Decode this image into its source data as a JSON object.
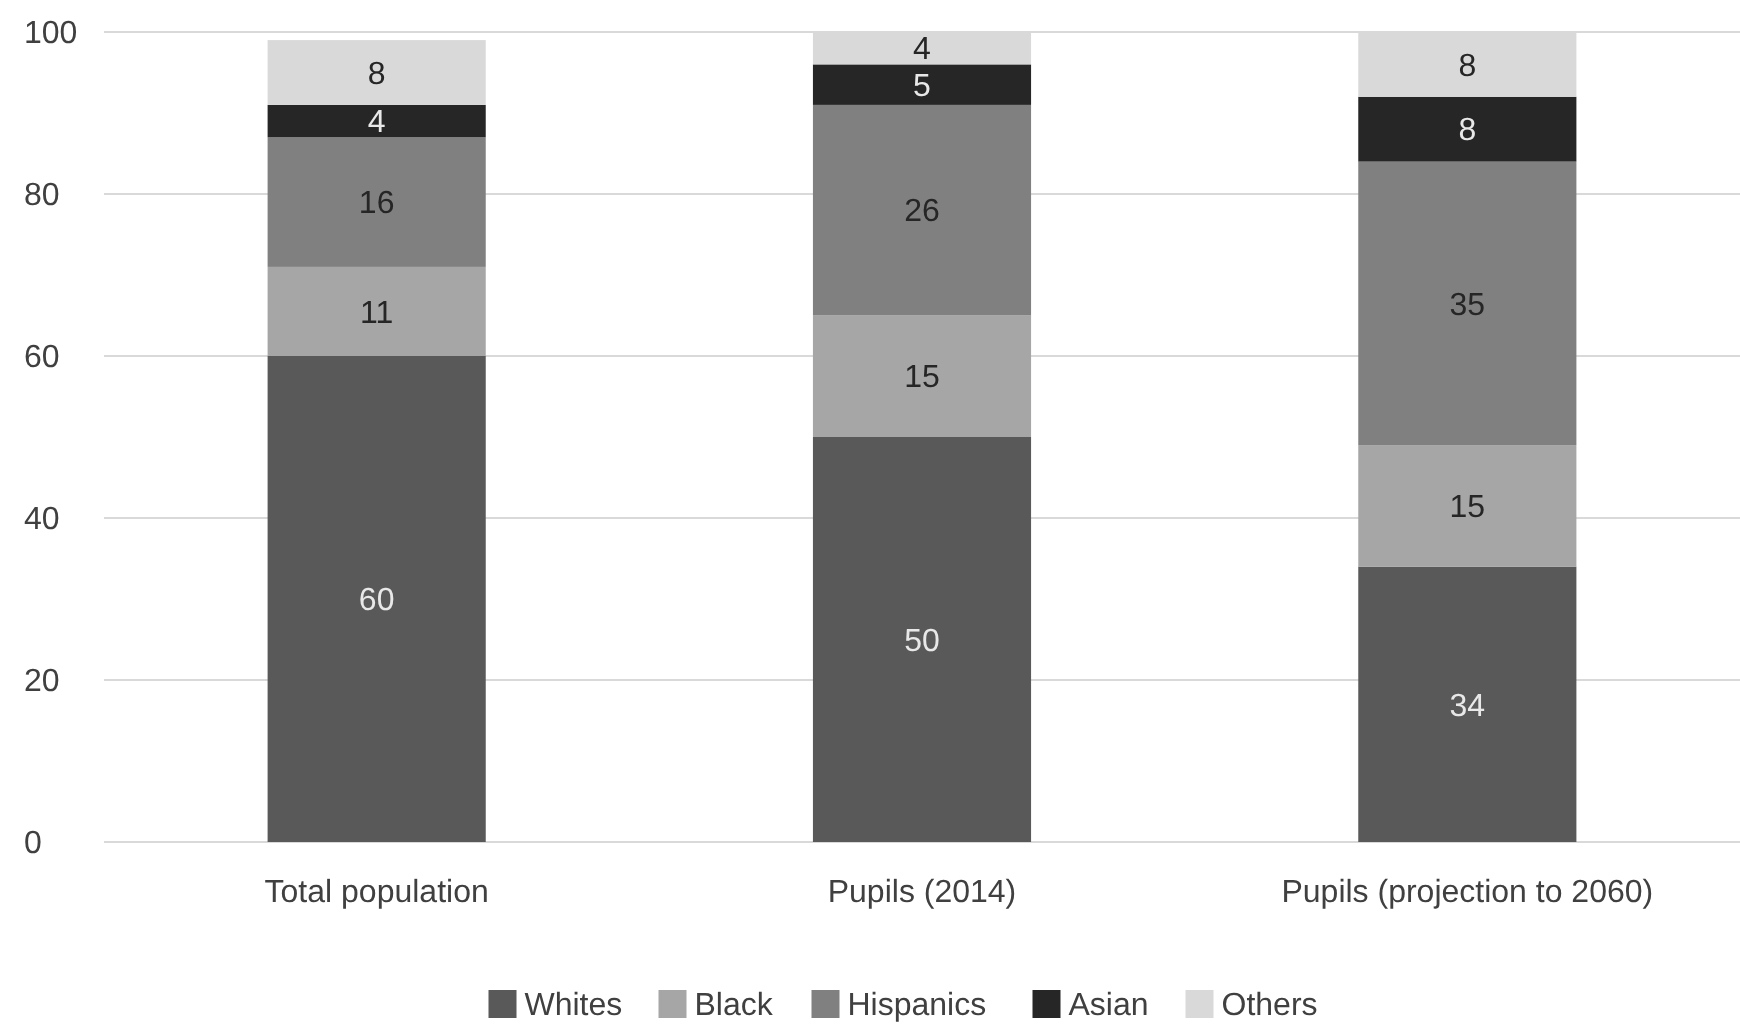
{
  "chart_data": {
    "type": "bar",
    "stacked": true,
    "categories": [
      "Total population",
      "Pupils (2014)",
      "Pupils (projection to 2060)"
    ],
    "series": [
      {
        "name": "Whites",
        "color": "#595959",
        "values": [
          60,
          50,
          34
        ]
      },
      {
        "name": "Black",
        "color": "#a6a6a6",
        "values": [
          11,
          15,
          15
        ]
      },
      {
        "name": "Hispanics",
        "color": "#808080",
        "values": [
          16,
          26,
          35
        ]
      },
      {
        "name": "Asian",
        "color": "#262626",
        "values": [
          4,
          5,
          8
        ]
      },
      {
        "name": "Others",
        "color": "#d9d9d9",
        "values": [
          8,
          4,
          8
        ]
      }
    ],
    "ylim": [
      0,
      100
    ],
    "yticks": [
      0,
      20,
      40,
      60,
      80,
      100
    ],
    "grid": "y",
    "legend": "bottom",
    "data_labels": true
  }
}
